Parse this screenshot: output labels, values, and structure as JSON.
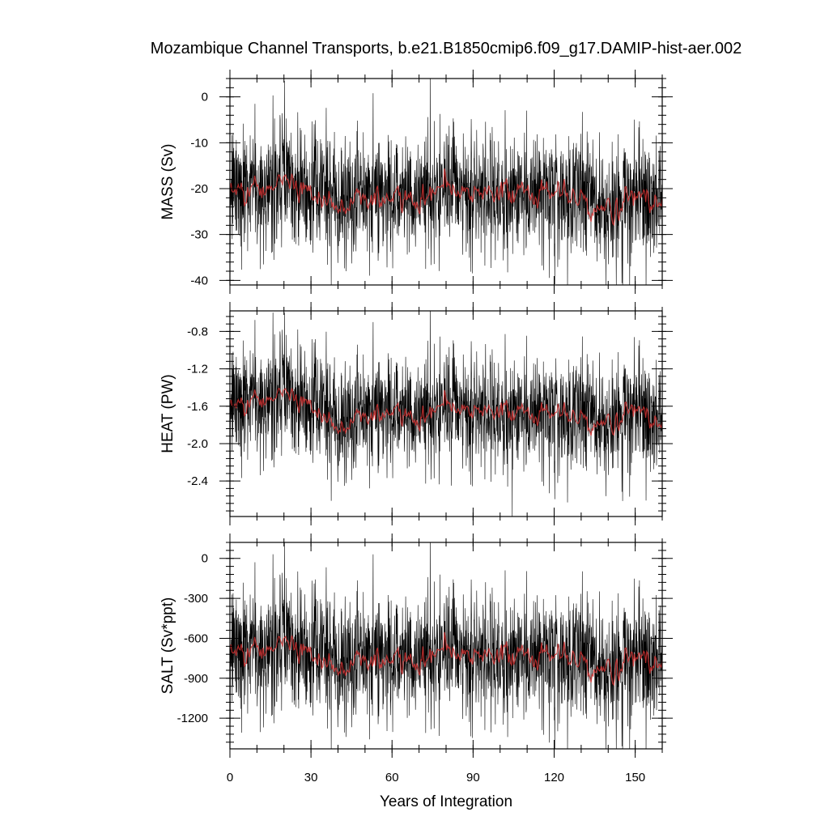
{
  "chart_data": {
    "type": "line",
    "title": "Mozambique Channel Transports, b.e21.B1850cmip6.f09_g17.DAMIP-hist-aer.002",
    "xlabel": "Years of Integration",
    "xlim": [
      0,
      160
    ],
    "xticks": [
      0,
      30,
      60,
      90,
      120,
      150
    ],
    "xtick_labels": [
      "0",
      "30",
      "60",
      "90",
      "120",
      "150"
    ],
    "line_colors": {
      "raw": "#000000",
      "smoothed": "#d03030"
    },
    "panels": [
      {
        "ylabel": "MASS (Sv)",
        "ylim": [
          -41,
          4
        ],
        "yticks": [
          0,
          -10,
          -20,
          -30,
          -40
        ],
        "ytick_labels": [
          "0",
          "-10",
          "-20",
          "-30",
          "-40"
        ],
        "mean": -21,
        "raw_spread": 6.5,
        "smooth_spread": 1.5,
        "extremes": [
          {
            "x": 20.2,
            "y": 3.5
          },
          {
            "x": 53,
            "y": 0.8
          },
          {
            "x": 143,
            "y": -41
          },
          {
            "x": 43,
            "y": -38
          }
        ],
        "smoothed_x": [
          0,
          10,
          20,
          30,
          40,
          50,
          60,
          70,
          80,
          90,
          100,
          110,
          120,
          130,
          140,
          150,
          160
        ],
        "smoothed_y": [
          -21,
          -20.5,
          -18,
          -21,
          -23,
          -21.5,
          -22,
          -22,
          -20,
          -21,
          -21,
          -21.5,
          -21,
          -22,
          -24,
          -21,
          -23
        ]
      },
      {
        "ylabel": "HEAT (PW)",
        "ylim": [
          -2.78,
          -0.58
        ],
        "yticks": [
          -0.8,
          -1.2,
          -1.6,
          -2.0,
          -2.4
        ],
        "ytick_labels": [
          "-0.8",
          "-1.2",
          "-1.6",
          "-2.0",
          "-2.4"
        ],
        "mean": -1.65,
        "raw_spread": 0.3,
        "smooth_spread": 0.06,
        "extremes": [
          {
            "x": 20.2,
            "y": -0.6
          },
          {
            "x": 53,
            "y": -0.7
          },
          {
            "x": 104.5,
            "y": -2.78
          },
          {
            "x": 82,
            "y": -2.45
          }
        ],
        "smoothed_x": [
          0,
          10,
          20,
          30,
          40,
          50,
          60,
          70,
          80,
          90,
          100,
          110,
          120,
          130,
          140,
          150,
          160
        ],
        "smoothed_y": [
          -1.62,
          -1.55,
          -1.45,
          -1.6,
          -1.8,
          -1.68,
          -1.66,
          -1.72,
          -1.6,
          -1.65,
          -1.66,
          -1.7,
          -1.68,
          -1.72,
          -1.76,
          -1.6,
          -1.8
        ]
      },
      {
        "ylabel": "SALT (Sv*ppt)",
        "ylim": [
          -1430,
          120
        ],
        "yticks": [
          0,
          -300,
          -600,
          -900,
          -1200
        ],
        "ytick_labels": [
          "0",
          "-300",
          "-600",
          "-900",
          "-1200"
        ],
        "mean": -730,
        "raw_spread": 230,
        "smooth_spread": 50,
        "extremes": [
          {
            "x": 20.2,
            "y": 120
          },
          {
            "x": 53,
            "y": 30
          },
          {
            "x": 143,
            "y": -1430
          },
          {
            "x": 43,
            "y": -1340
          }
        ],
        "smoothed_x": [
          0,
          10,
          20,
          30,
          40,
          50,
          60,
          70,
          80,
          90,
          100,
          110,
          120,
          130,
          140,
          150,
          160
        ],
        "smoothed_y": [
          -720,
          -700,
          -620,
          -720,
          -800,
          -740,
          -760,
          -760,
          -700,
          -730,
          -730,
          -750,
          -730,
          -760,
          -820,
          -720,
          -790
        ]
      }
    ]
  }
}
